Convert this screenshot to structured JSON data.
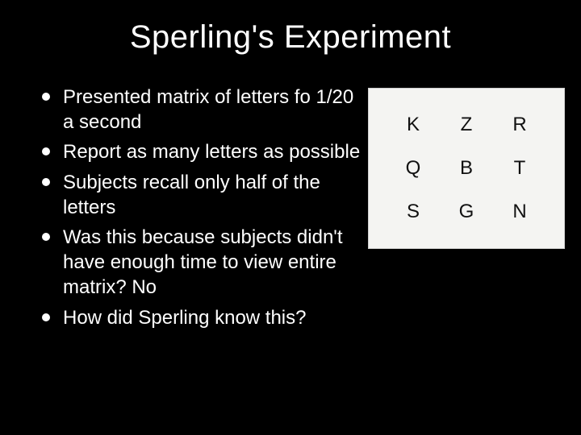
{
  "title": "Sperling's Experiment",
  "bullets": [
    "Presented matrix of letters  fo 1/20 a second",
    "Report as many letters as possible",
    "Subjects recall only half of the letters",
    "Was this because subjects didn't have enough time to view entire matrix?  No",
    "How did Sperling know this?"
  ],
  "matrix": {
    "rows": [
      [
        "K",
        "Z",
        "R"
      ],
      [
        "Q",
        "B",
        "T"
      ],
      [
        "S",
        "G",
        "N"
      ]
    ],
    "bg_color": "#f4f4f2",
    "text_color": "#111111",
    "border_color": "#cfcfcf",
    "cell_fontsize": 24
  },
  "colors": {
    "background": "#000000",
    "text": "#ffffff",
    "bullet_dot": "#ffffff"
  },
  "title_fontsize": 40,
  "bullet_fontsize": 24
}
